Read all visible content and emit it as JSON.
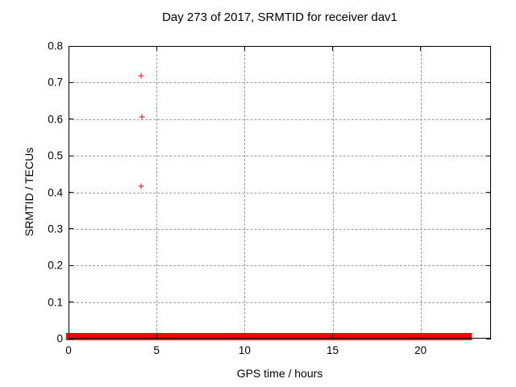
{
  "window": {
    "background_color": "#ffffff",
    "text_color": "#000000"
  },
  "chart_data": {
    "type": "scatter",
    "title": "Day 273 of 2017, SRMTID for receiver dav1",
    "xlabel": "GPS time / hours",
    "ylabel": "SRMTID / TECUs",
    "xlim": [
      0,
      24
    ],
    "ylim": [
      0,
      0.8
    ],
    "xticks": {
      "values": [
        0,
        5,
        10,
        15,
        20
      ],
      "labels": [
        "0",
        "5",
        "10",
        "15",
        "20"
      ]
    },
    "yticks": {
      "values": [
        0,
        0.1,
        0.2,
        0.3,
        0.4,
        0.5,
        0.6,
        0.7,
        0.8
      ],
      "labels": [
        "0",
        "0.1",
        "0.2",
        "0.3",
        "0.4",
        "0.5",
        "0.6",
        "0.7",
        "0.8"
      ]
    },
    "grid": {
      "show": true,
      "color": "#9e9e9e",
      "style": "dashed"
    },
    "axis_color": "#000000",
    "legend": null,
    "series": [
      {
        "name": "SRMTID",
        "color": "#ff0000",
        "marker": "plus",
        "outlier_points": [
          {
            "x": 4.1,
            "y": 0.719
          },
          {
            "x": 4.15,
            "y": 0.605
          },
          {
            "x": 4.1,
            "y": 0.417
          }
        ],
        "baseline_band": {
          "description": "dense cluster of points near y=0 forming a thick red horizontal line",
          "y_center": 0.0055,
          "x_start": 0,
          "x_end": 22.9,
          "thickness_px": 9
        }
      }
    ]
  }
}
